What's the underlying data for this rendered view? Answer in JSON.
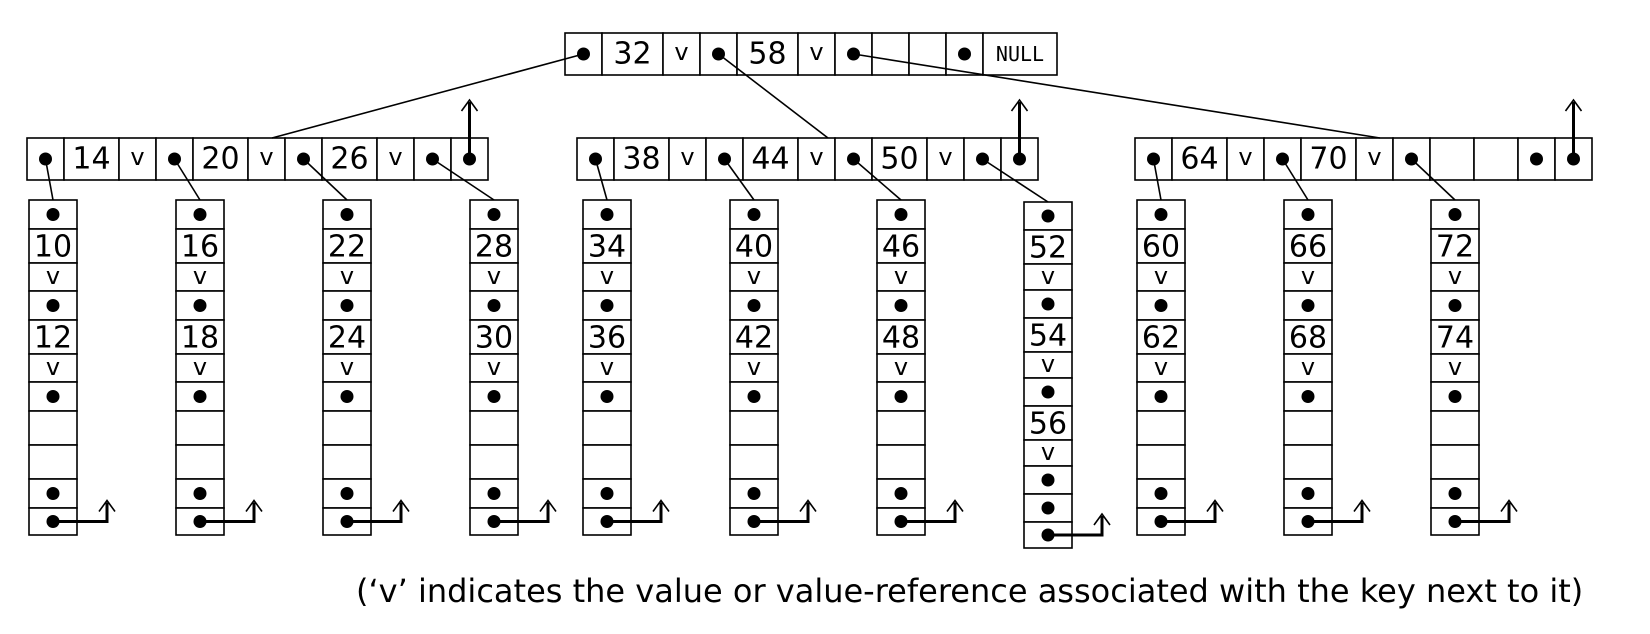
{
  "root": {
    "keys": [
      "32",
      "58"
    ],
    "value_marker": "v",
    "null_label": "NULL"
  },
  "internal_nodes": [
    {
      "keys": [
        "14",
        "20",
        "26"
      ]
    },
    {
      "keys": [
        "38",
        "44",
        "50"
      ]
    },
    {
      "keys": [
        "64",
        "70"
      ]
    }
  ],
  "leaves": [
    {
      "keys": [
        "10",
        "12"
      ]
    },
    {
      "keys": [
        "16",
        "18"
      ]
    },
    {
      "keys": [
        "22",
        "24"
      ]
    },
    {
      "keys": [
        "28",
        "30"
      ]
    },
    {
      "keys": [
        "34",
        "36"
      ]
    },
    {
      "keys": [
        "40",
        "42"
      ]
    },
    {
      "keys": [
        "46",
        "48"
      ]
    },
    {
      "keys": [
        "52",
        "54",
        "56"
      ]
    },
    {
      "keys": [
        "60",
        "62"
      ]
    },
    {
      "keys": [
        "66",
        "68"
      ]
    },
    {
      "keys": [
        "72",
        "74"
      ]
    }
  ],
  "caption": "(‘v’ indicates the value or value-reference associated with the key next to it)"
}
